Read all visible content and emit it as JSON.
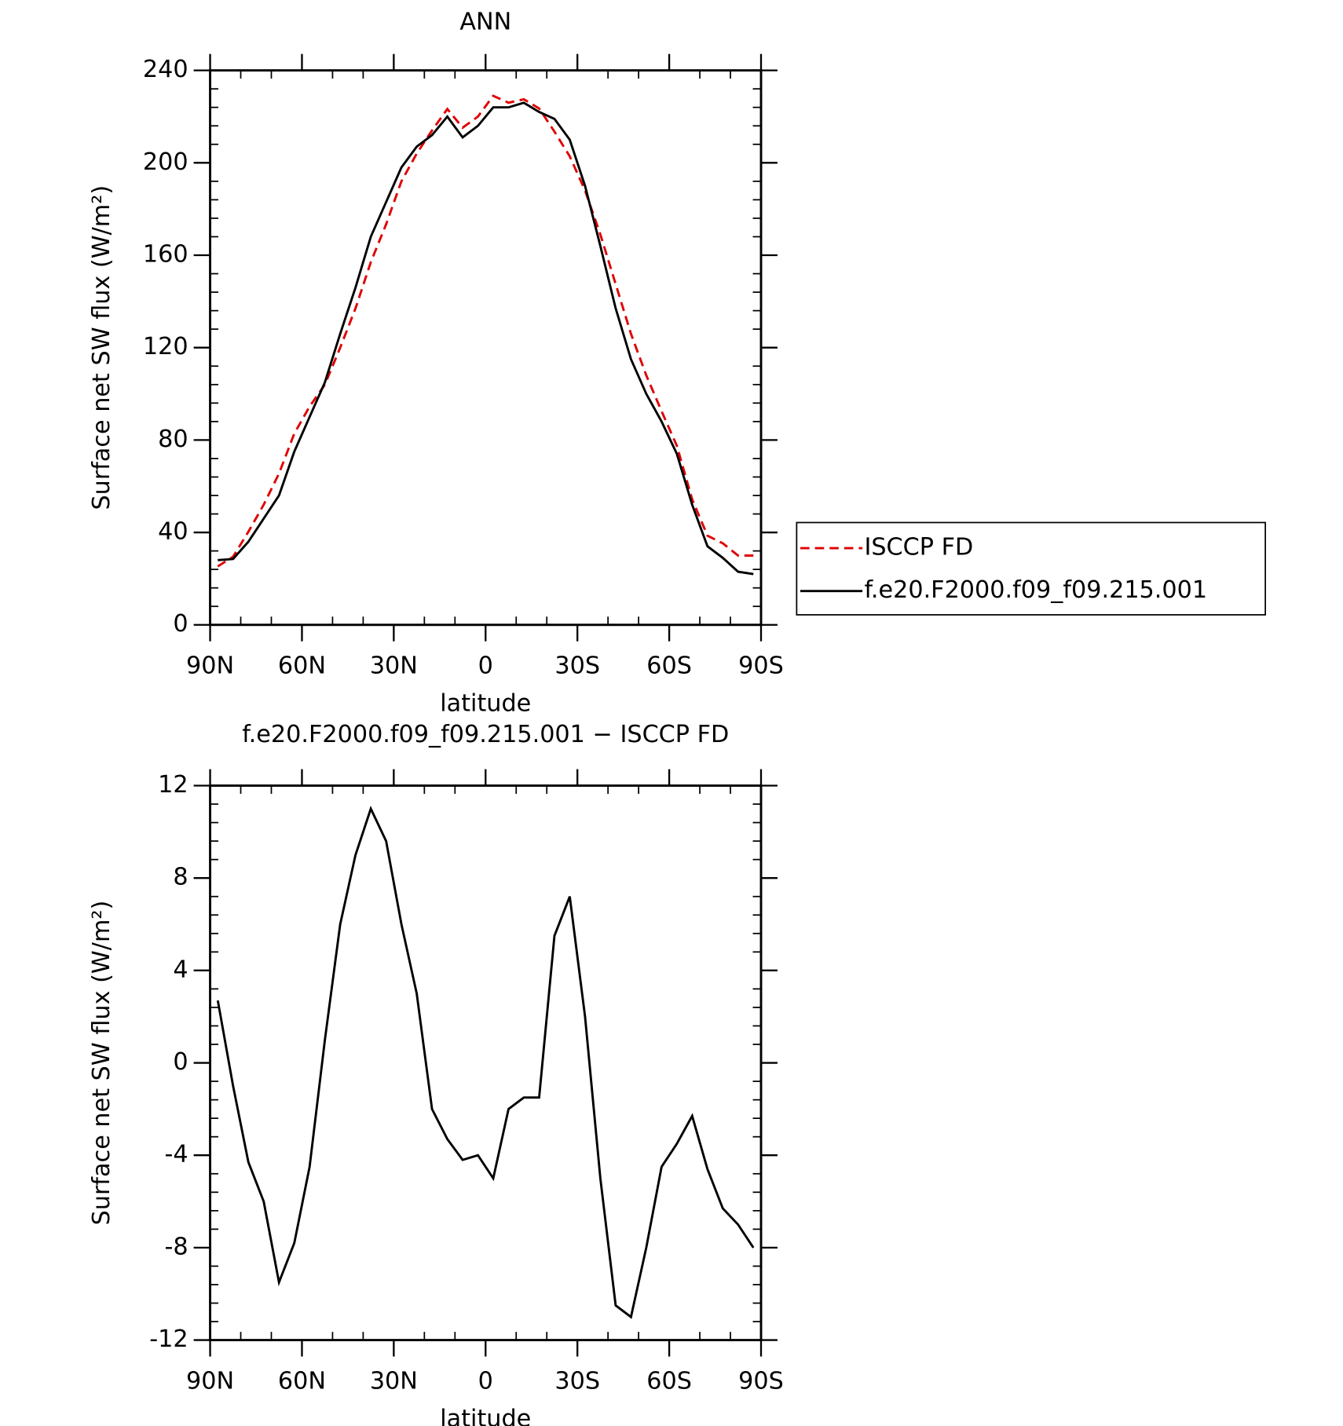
{
  "chart_data": [
    {
      "type": "line",
      "title": "ANN",
      "xlabel": "latitude",
      "ylabel": "Surface net SW flux (W/m²)",
      "x": [
        87.5,
        82.5,
        77.5,
        72.5,
        67.5,
        62.5,
        57.5,
        52.5,
        47.5,
        42.5,
        37.5,
        32.5,
        27.5,
        22.5,
        17.5,
        12.5,
        7.5,
        2.5,
        -2.5,
        -7.5,
        -12.5,
        -17.5,
        -22.5,
        -27.5,
        -32.5,
        -37.5,
        -42.5,
        -47.5,
        -52.5,
        -57.5,
        -62.5,
        -67.5,
        -72.5,
        -77.5,
        -82.5,
        -87.5
      ],
      "xlim": [
        90,
        -90
      ],
      "xticks": [
        {
          "value": 90,
          "label": "90N"
        },
        {
          "value": 60,
          "label": "60N"
        },
        {
          "value": 30,
          "label": "30N"
        },
        0,
        {
          "value": -30,
          "label": "30S"
        },
        {
          "value": -60,
          "label": "60S"
        },
        {
          "value": -90,
          "label": "90S"
        }
      ],
      "ylim": [
        0,
        240
      ],
      "yticks": [
        0,
        40,
        80,
        120,
        160,
        200,
        240
      ],
      "series": [
        {
          "name": "ISCCP FD",
          "color": "#e00000",
          "dash": true,
          "values": [
            25.3,
            29.5,
            40.3,
            52,
            65.5,
            82.8,
            94.5,
            104,
            120,
            137,
            157,
            173.4,
            192,
            204,
            214,
            223.3,
            215.2,
            220,
            229,
            226,
            227.5,
            223.5,
            213.5,
            202.8,
            188,
            169,
            147.5,
            126,
            108,
            92.5,
            77.5,
            54.3,
            38.6,
            35.3,
            30,
            30
          ]
        },
        {
          "name": "f.e20.F2000.f09_f09.215.001",
          "color": "#000000",
          "dash": false,
          "values": [
            28,
            28.5,
            36,
            46,
            56,
            75,
            90,
            105,
            126,
            146,
            168,
            183,
            198,
            207,
            212,
            220,
            211,
            216,
            224,
            224,
            226,
            222,
            219,
            210,
            190,
            164,
            137,
            115,
            100,
            88,
            74,
            52,
            34,
            29,
            23,
            22
          ]
        }
      ]
    },
    {
      "type": "line",
      "title": "f.e20.F2000.f09_f09.215.001 − ISCCP FD",
      "xlabel": "latitude",
      "ylabel": "Surface net SW flux (W/m²)",
      "x": [
        87.5,
        82.5,
        77.5,
        72.5,
        67.5,
        62.5,
        57.5,
        52.5,
        47.5,
        42.5,
        37.5,
        32.5,
        27.5,
        22.5,
        17.5,
        12.5,
        7.5,
        2.5,
        -2.5,
        -7.5,
        -12.5,
        -17.5,
        -22.5,
        -27.5,
        -32.5,
        -37.5,
        -42.5,
        -47.5,
        -52.5,
        -57.5,
        -62.5,
        -67.5,
        -72.5,
        -77.5,
        -82.5,
        -87.5
      ],
      "xlim": [
        90,
        -90
      ],
      "xticks": [
        {
          "value": 90,
          "label": "90N"
        },
        {
          "value": 60,
          "label": "60N"
        },
        {
          "value": 30,
          "label": "30N"
        },
        0,
        {
          "value": -30,
          "label": "30S"
        },
        {
          "value": -60,
          "label": "60S"
        },
        {
          "value": -90,
          "label": "90S"
        }
      ],
      "ylim": [
        -12,
        12
      ],
      "yticks": [
        -12,
        -8,
        -4,
        0,
        4,
        8,
        12
      ],
      "color": "#000000",
      "values": [
        2.7,
        -1,
        -4.3,
        -6,
        -9.5,
        -7.8,
        -4.5,
        1,
        6,
        9,
        11,
        9.6,
        6,
        3,
        -2,
        -3.3,
        -4.2,
        -4,
        -5,
        -2,
        -1.5,
        -1.5,
        5.5,
        7.2,
        2,
        -5,
        -10.5,
        -11,
        -8,
        -4.5,
        -3.5,
        -2.3,
        -4.6,
        -6.3,
        -7,
        -8
      ]
    }
  ]
}
